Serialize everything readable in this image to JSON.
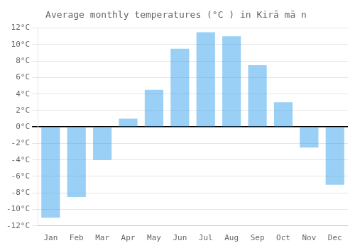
{
  "chart_data": {
    "type": "bar",
    "title": "Average monthly temperatures (°C ) in Kirā mā n",
    "categories": [
      "Jan",
      "Feb",
      "Mar",
      "Apr",
      "May",
      "Jun",
      "Jul",
      "Aug",
      "Sep",
      "Oct",
      "Nov",
      "Dec"
    ],
    "values": [
      -11,
      -8.5,
      -4,
      1,
      4.5,
      9.5,
      11.5,
      11,
      7.5,
      3,
      -2.5,
      -7
    ],
    "ylim": [
      -12,
      12
    ],
    "yticks": [
      {
        "value": -12,
        "label": "-12°C"
      },
      {
        "value": -10,
        "label": "-10°C"
      },
      {
        "value": -8,
        "label": "-8°C"
      },
      {
        "value": -6,
        "label": "-6°C"
      },
      {
        "value": -4,
        "label": "-4°C"
      },
      {
        "value": -2,
        "label": "-2°C"
      },
      {
        "value": 0,
        "label": "0°C"
      },
      {
        "value": 2,
        "label": "2°C"
      },
      {
        "value": 4,
        "label": "4°C"
      },
      {
        "value": 6,
        "label": "6°C"
      },
      {
        "value": 8,
        "label": "8°C"
      },
      {
        "value": 10,
        "label": "10°C"
      },
      {
        "value": 12,
        "label": "12°C"
      }
    ],
    "grid": true
  }
}
